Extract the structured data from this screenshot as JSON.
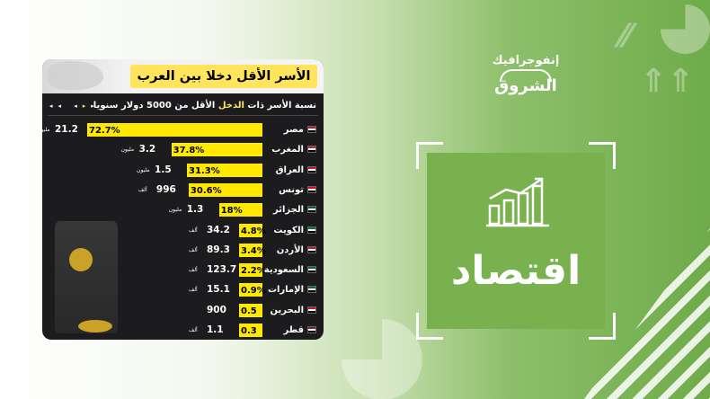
{
  "card": {
    "title": "الأسر الأقل دخلا بين العرب",
    "subtitle_pre": "نسبة الأسر ذات",
    "subtitle_hl": "الدخل",
    "subtitle_post": "الأقل من 5000 دولار سنويا"
  },
  "brand": {
    "section": "إنفوجرافيك",
    "name": "الشروق"
  },
  "category_label": "اقتصاد",
  "chart_data": {
    "type": "bar",
    "title": "الأسر الأقل دخلا بين العرب",
    "subtitle": "نسبة الأسر ذات الدخل الأقل من 5000 دولار سنويا",
    "categories": [
      "مصر",
      "المغرب",
      "العراق",
      "تونس",
      "الجزائر",
      "الكويت",
      "الأردن",
      "السعودية",
      "الإمارات",
      "البحرين",
      "قطر"
    ],
    "values": [
      72.7,
      37.8,
      31.3,
      30.6,
      18,
      4.8,
      3.4,
      2.2,
      0.9,
      0.5,
      0.3
    ],
    "labels": [
      "72.7%",
      "37.8%",
      "31.3%",
      "30.6%",
      "18%",
      "4.8%",
      "3.4%",
      "2.2%",
      "0.9%",
      "0.5",
      "0.3"
    ],
    "counts": [
      "21.2",
      "3.2",
      "1.5",
      "996",
      "1.3",
      "34.2",
      "89.3",
      "123.7",
      "15.1",
      "900",
      "1.1"
    ],
    "units": [
      "مليون",
      "مليون",
      "مليون",
      "ألف",
      "مليون",
      "ألف",
      "ألف",
      "ألف",
      "ألف",
      "",
      "ألف"
    ],
    "flag_colors": [
      "#ce1126",
      "#c1272d",
      "#ce1126",
      "#e70013",
      "#006233",
      "#007a3d",
      "#ce1126",
      "#006c35",
      "#00732f",
      "#ce1126",
      "#8a1538"
    ]
  }
}
